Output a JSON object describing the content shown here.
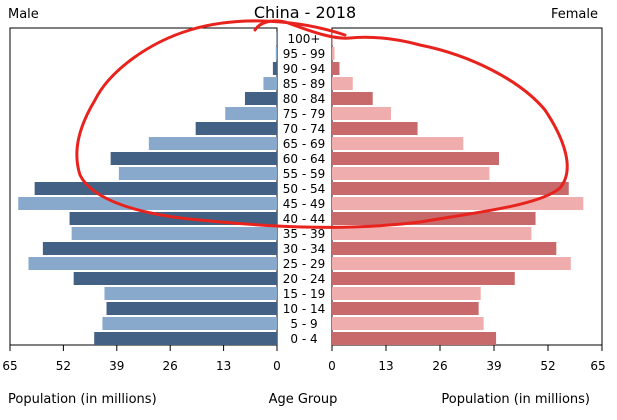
{
  "chart_data": {
    "type": "bar",
    "title": "China - 2018",
    "left_label": "Male",
    "right_label": "Female",
    "xlabel_left": "Population (in millions)",
    "xlabel_center": "Age Group",
    "xlabel_right": "Population (in millions)",
    "xlim": [
      0,
      65
    ],
    "ticks_left": [
      "65",
      "52",
      "39",
      "26",
      "13",
      "0"
    ],
    "ticks_right": [
      "0",
      "13",
      "26",
      "39",
      "52",
      "65"
    ],
    "tick_values": [
      0,
      13,
      26,
      39,
      52,
      65
    ],
    "categories": [
      "100+",
      "95 - 99",
      "90 - 94",
      "85 - 89",
      "80 - 84",
      "75 - 79",
      "70 - 74",
      "65 - 69",
      "60 - 64",
      "55 - 59",
      "50 - 54",
      "45 - 49",
      "40 - 44",
      "35 - 39",
      "30 - 34",
      "25 - 29",
      "20 - 24",
      "15 - 19",
      "10 - 14",
      "5 - 9",
      "0 - 4"
    ],
    "series": [
      {
        "name": "Male",
        "values": [
          0.1,
          0.3,
          1.0,
          3.3,
          7.8,
          12.6,
          19.8,
          31.2,
          40.5,
          38.5,
          59.0,
          63.0,
          50.5,
          50.0,
          57.0,
          60.5,
          49.5,
          42.0,
          41.5,
          42.5,
          44.5
        ]
      },
      {
        "name": "Female",
        "values": [
          0.1,
          0.6,
          1.8,
          5.0,
          9.8,
          14.2,
          20.6,
          31.6,
          40.2,
          37.9,
          57.0,
          60.5,
          49.0,
          48.0,
          54.0,
          57.5,
          44.0,
          35.8,
          35.3,
          36.5,
          39.5
        ]
      }
    ],
    "colors": {
      "male_dark": "#436085",
      "male_light": "#88a9cc",
      "female_dark": "#c8696b",
      "female_light": "#f0adad",
      "annotation": "#e8231d",
      "axis": "#000000"
    }
  }
}
